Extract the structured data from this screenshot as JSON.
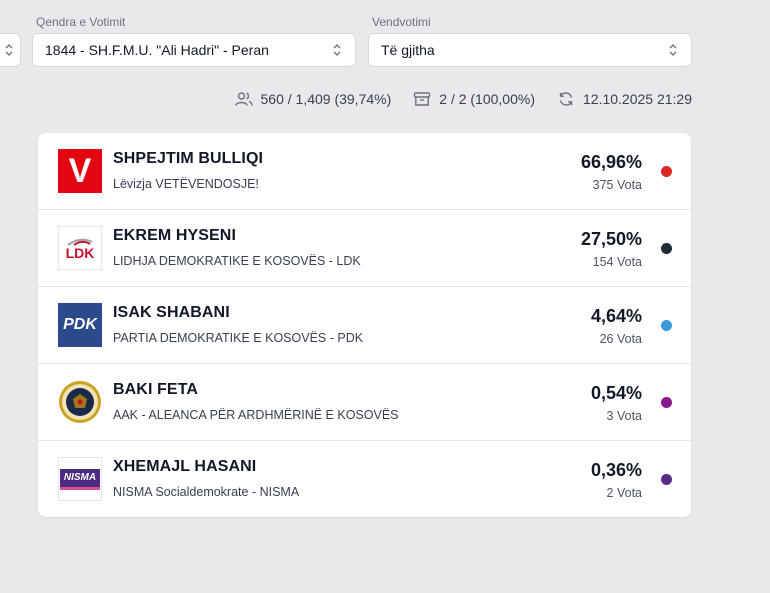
{
  "filters": {
    "center_label": "Qendra e Votimit",
    "center_value": "1844 - SH.F.M.U. \"Ali Hadri\" - Peran",
    "station_label": "Vendvotimi",
    "station_value": "Të gjitha"
  },
  "stats": {
    "voters": "560 / 1,409 (39,74%)",
    "boxes": "2 / 2 (100,00%)",
    "updated": "12.10.2025 21:29"
  },
  "candidates": [
    {
      "name": "SHPEJTIM BULLIQI",
      "party": "Lëvizja VETËVENDOSJE!",
      "percent": "66,96%",
      "votes": "375 Vota",
      "color": "#dc2626",
      "logo": "vv-logo"
    },
    {
      "name": "EKREM HYSENI",
      "party": "LIDHJA DEMOKRATIKE E KOSOVËS - LDK",
      "percent": "27,50%",
      "votes": "154 Vota",
      "color": "#1f2937",
      "logo": "ldk-logo"
    },
    {
      "name": "ISAK SHABANI",
      "party": "PARTIA DEMOKRATIKE E KOSOVËS - PDK",
      "percent": "4,64%",
      "votes": "26 Vota",
      "color": "#3b9ad9",
      "logo": "pdk-logo"
    },
    {
      "name": "BAKI FETA",
      "party": "AAK - ALEANCA PËR ARDHMËRINË E KOSOVËS",
      "percent": "0,54%",
      "votes": "3 Vota",
      "color": "#86198f",
      "logo": "aak-logo"
    },
    {
      "name": "XHEMAJL HASANI",
      "party": "NISMA Socialdemokrate - NISMA",
      "percent": "0,36%",
      "votes": "2 Vota",
      "color": "#5b2a86",
      "logo": "nisma-logo"
    }
  ],
  "logo_text": {
    "vv": "V",
    "ldk": "LDK",
    "pdk": "PDK",
    "nisma": "NISMA"
  }
}
